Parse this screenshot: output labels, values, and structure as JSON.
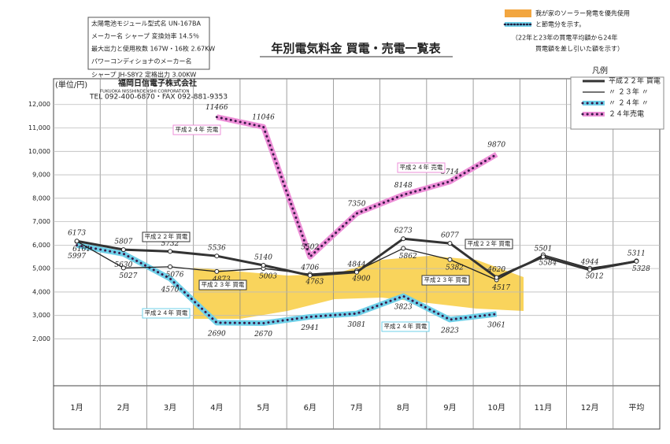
{
  "chart_data": {
    "type": "line",
    "title": "年別電気料金 買電・売電一覧表",
    "y_label": "(単位/円)",
    "categories": [
      "1月",
      "2月",
      "3月",
      "4月",
      "5月",
      "6月",
      "7月",
      "8月",
      "9月",
      "10月",
      "11月",
      "12月",
      "平均"
    ],
    "ylim": [
      0,
      13100
    ],
    "yticks": [
      {
        "value": 2000,
        "label": "2,000"
      },
      {
        "value": 3000,
        "label": "3,000"
      },
      {
        "value": 4000,
        "label": "4,000"
      },
      {
        "value": 5000,
        "label": "5,000"
      },
      {
        "value": 6000,
        "label": "6,000"
      },
      {
        "value": 7000,
        "label": "7,000"
      },
      {
        "value": 8000,
        "label": "8,000"
      },
      {
        "value": 9000,
        "label": "9,000"
      },
      {
        "value": 10000,
        "label": "10,000"
      },
      {
        "value": 11000,
        "label": "11,000"
      },
      {
        "value": 12000,
        "label": "12,000"
      }
    ],
    "grid": true,
    "legend_title": "凡例",
    "series": [
      {
        "name": "平成２２年 買電",
        "color": "#333333",
        "line_style": "solid",
        "width": 3,
        "values": [
          6173,
          5807,
          5732,
          5536,
          5140,
          4706,
          4844,
          6273,
          6077,
          4620,
          5501,
          4944,
          5311
        ]
      },
      {
        "name": "〃 ２３年 〃",
        "color": "#222222",
        "line_style": "solid",
        "width": 1.3,
        "values": [
          6161,
          5027,
          5076,
          4873,
          5003,
          4763,
          4900,
          5862,
          5382,
          4517,
          5584,
          5012,
          5328
        ]
      },
      {
        "name": "〃 ２４年 〃",
        "color": "#6fd0e8",
        "line_style": "dotted",
        "width": 7,
        "values": [
          5997,
          5630,
          4570,
          2690,
          2670,
          2941,
          3081,
          3823,
          2823,
          3061,
          null,
          null,
          null
        ]
      },
      {
        "name": "２４年売電",
        "color": "#ee8fd8",
        "line_style": "dotted",
        "width": 7,
        "values": [
          null,
          null,
          null,
          11466,
          11046,
          5502,
          7350,
          8148,
          8714,
          9870,
          null,
          null,
          null
        ]
      }
    ],
    "annotations": [
      "平成２４年 売電",
      "平成２４年 売電",
      "平成２２年 買電",
      "平成２２年 買電",
      "平成２３年 買電",
      "平成２３年 買電",
      "平成２４年 買電",
      "平成２４年 買電"
    ],
    "header": [
      "太陽電池モジュール型式名 UN-167BA",
      "メーカー名 シャープ 変換効率 14.5％",
      "最大出力と使用枚数 167W・16枚 2.67KW",
      "パワーコンディショナのメーカー名",
      "シャープ JH-S8Y2 定格出力 3.00KW",
      "福岡日信電子株式会社",
      "FUKUOKA NISSHINDENSHI CORPORATION",
      "TEL 092-400-6870・FAX 092-881-9353"
    ],
    "notes": [
      "我が家のソーラー発電を優先使用",
      "と節電分を示す。",
      "（22年と23年の買電平均額から24年",
      "買電額を差し引いた額を示す）"
    ]
  }
}
